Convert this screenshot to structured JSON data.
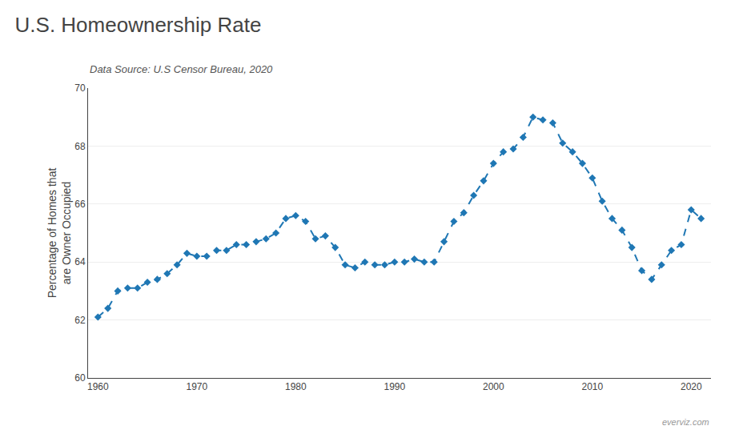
{
  "chart_data": {
    "type": "line",
    "title": "U.S. Homeownership Rate",
    "subtitle": "Data Source: U.S Censor Bureau, 2020",
    "ylabel": "Percentage of Homes that\nare Owner Occupied",
    "annotations": [
      "everviz.com"
    ],
    "x": [
      1960,
      1961,
      1962,
      1963,
      1964,
      1965,
      1966,
      1967,
      1968,
      1969,
      1970,
      1971,
      1972,
      1973,
      1974,
      1975,
      1976,
      1977,
      1978,
      1979,
      1980,
      1981,
      1982,
      1983,
      1984,
      1985,
      1986,
      1987,
      1988,
      1989,
      1990,
      1991,
      1992,
      1993,
      1994,
      1995,
      1996,
      1997,
      1998,
      1999,
      2000,
      2001,
      2002,
      2003,
      2004,
      2005,
      2006,
      2007,
      2008,
      2009,
      2010,
      2011,
      2012,
      2013,
      2014,
      2015,
      2016,
      2017,
      2018,
      2019,
      2020,
      2021
    ],
    "values": [
      62.1,
      62.4,
      63.0,
      63.1,
      63.1,
      63.3,
      63.4,
      63.6,
      63.9,
      64.3,
      64.2,
      64.2,
      64.4,
      64.4,
      64.6,
      64.6,
      64.7,
      64.8,
      65.0,
      65.5,
      65.6,
      65.4,
      64.8,
      64.9,
      64.5,
      63.9,
      63.8,
      64.0,
      63.9,
      63.9,
      64.0,
      64.0,
      64.1,
      64.0,
      64.0,
      64.7,
      65.4,
      65.7,
      66.3,
      66.8,
      67.4,
      67.8,
      67.9,
      68.3,
      69.0,
      68.9,
      68.8,
      68.1,
      67.8,
      67.4,
      66.9,
      66.1,
      65.5,
      65.1,
      64.5,
      63.7,
      63.4,
      63.9,
      64.4,
      64.6,
      65.8,
      65.5
    ],
    "xlim": [
      1959,
      2022
    ],
    "xticks": [
      1960,
      1970,
      1980,
      1990,
      2000,
      2010,
      2020
    ],
    "ylim": [
      60,
      70
    ],
    "yticks": [
      60,
      62,
      64,
      66,
      68,
      70
    ],
    "grid": true,
    "marker": "diamond",
    "line_style": "dash"
  }
}
